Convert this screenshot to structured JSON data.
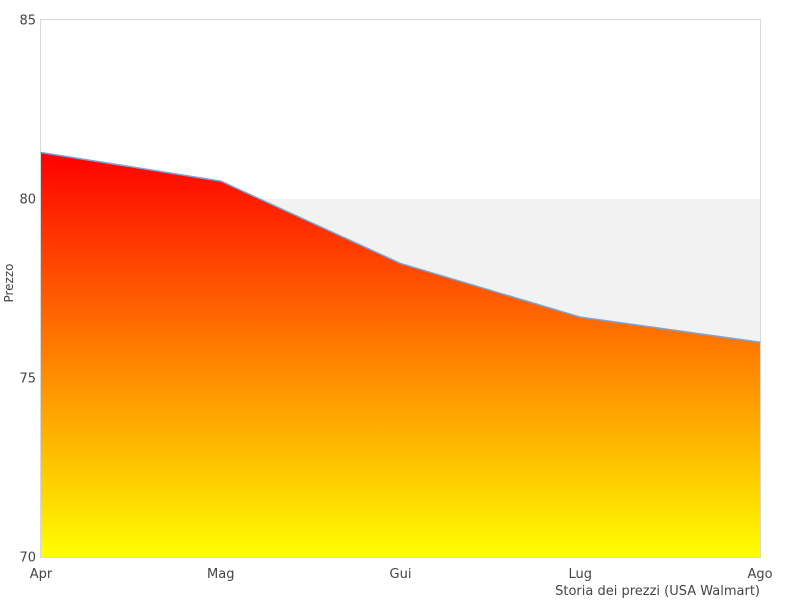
{
  "chart_data": {
    "type": "area",
    "caption": "Storia dei prezzi (USA Walmart)",
    "ylabel": "Prezzo",
    "categories": [
      "Apr",
      "Mag",
      "Gui",
      "Lug",
      "Ago"
    ],
    "values": [
      81.3,
      80.5,
      78.2,
      76.7,
      76.0
    ],
    "ylim": [
      70,
      85
    ],
    "yticks": [
      70,
      75,
      80,
      85
    ],
    "grid": false,
    "legend": false,
    "band": {
      "from": 70,
      "to": 80,
      "color": "#f2f2f3"
    },
    "colors": {
      "area_gradient_top": "#ff0000",
      "area_gradient_bottom": "#ffff00",
      "line": "#7aa3d6",
      "plot_border": "#d9d9d9",
      "text": "#454545",
      "background": "#ffffff"
    }
  }
}
